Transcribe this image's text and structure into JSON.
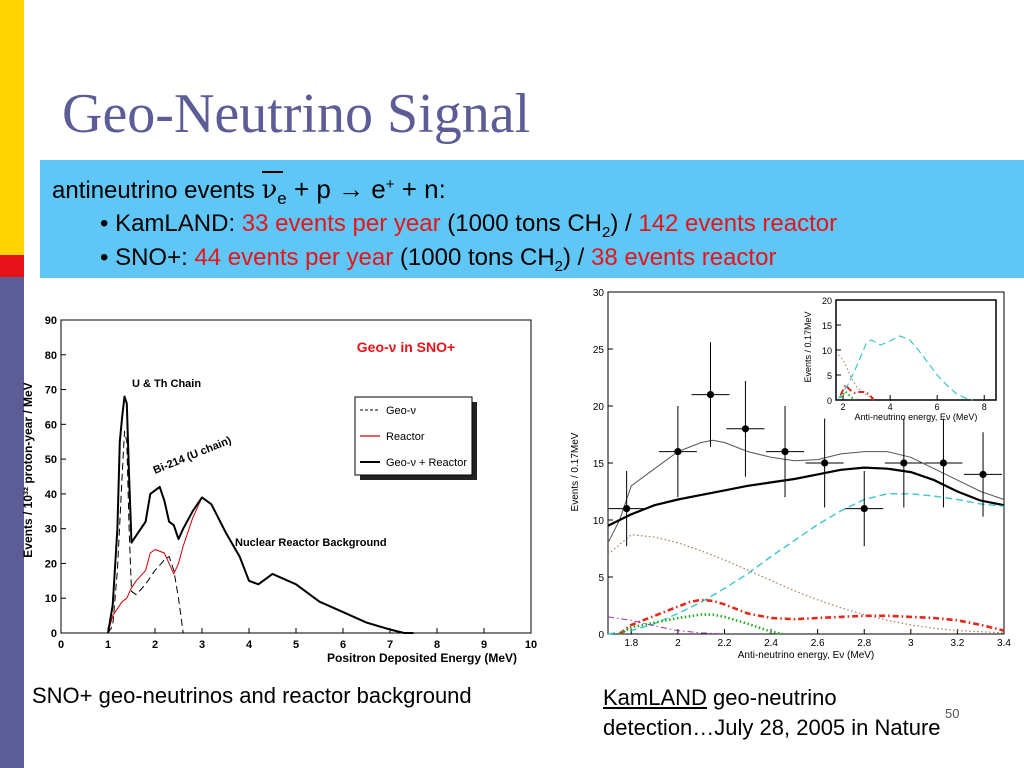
{
  "slide": {
    "title": "Geo-Neutrino Signal",
    "page_number": "50",
    "colors": {
      "title": "#5c5c96",
      "band": "#5fc6f5",
      "highlight": "#e8131a",
      "bar_yellow": "#ffd400",
      "bar_red": "#e8131a",
      "bar_blue": "#5c5c96"
    }
  },
  "band": {
    "line1": {
      "prefix": "antineutrino events ",
      "nu": "ν",
      "nu_sub": "e",
      "reaction": " + p → e",
      "plus_sup": "+",
      "suffix": " + n:"
    },
    "kamland": {
      "label": "• KamLAND: ",
      "rate": "33 events per year",
      "mass_a": " (1000 tons CH",
      "mass_sub": "2",
      "mass_b": ") / ",
      "reactor": "142 events reactor"
    },
    "sno": {
      "label": "• SNO+: ",
      "rate": "44 events per year",
      "mass_a": " (1000 tons CH",
      "mass_sub": "2",
      "mass_b": ") / ",
      "reactor": "38 events reactor"
    }
  },
  "captions": {
    "left": "SNO+ geo-neutrinos and reactor background",
    "right_link": "KamLAND",
    "right_rest": " geo-neutrino",
    "right_line2": "detection…July 28, 2005 in Nature"
  },
  "chart_data": [
    {
      "type": "line",
      "title": "Geo-ν in SNO+",
      "xlabel": "Positron Deposited Energy (MeV)",
      "ylabel": "Events / 10³² proton-year / MeV",
      "xlim": [
        0,
        10
      ],
      "ylim": [
        0,
        90
      ],
      "xticks": [
        0,
        1,
        2,
        3,
        4,
        5,
        6,
        7,
        8,
        9,
        10
      ],
      "yticks": [
        0,
        10,
        20,
        30,
        40,
        50,
        60,
        70,
        80,
        90
      ],
      "legend_position": "top-right",
      "annotations": [
        "U & Th Chain",
        "Bi-214 (U chain)",
        "Nuclear Reactor Background"
      ],
      "series": [
        {
          "name": "Geo-ν",
          "style": "dashed",
          "color": "#000000",
          "x": [
            1.0,
            1.1,
            1.2,
            1.3,
            1.35,
            1.4,
            1.45,
            1.5,
            1.6,
            1.8,
            2.0,
            2.2,
            2.3,
            2.4,
            2.5,
            2.6
          ],
          "y": [
            0,
            2,
            18,
            45,
            58,
            55,
            30,
            12,
            11,
            14,
            18,
            21,
            22,
            18,
            10,
            0
          ]
        },
        {
          "name": "Reactor",
          "style": "solid",
          "color": "#cc0000",
          "x": [
            1.0,
            1.1,
            1.2,
            1.3,
            1.4,
            1.5,
            1.6,
            1.8,
            1.9,
            2.0,
            2.2,
            2.4,
            2.5,
            2.6,
            2.8,
            3.0,
            3.2,
            3.5,
            3.8,
            4.0,
            4.2,
            4.5,
            5.0,
            5.5,
            6.0,
            6.5,
            7.0,
            7.3,
            7.5
          ],
          "y": [
            0,
            5,
            7,
            9,
            10,
            13,
            15,
            18,
            23,
            24,
            23,
            17,
            20,
            25,
            33,
            39,
            37,
            29,
            22,
            15,
            14,
            17,
            14,
            9,
            6,
            3,
            1,
            0,
            0
          ]
        },
        {
          "name": "Geo-ν + Reactor",
          "style": "solid",
          "color": "#000000",
          "x": [
            1.0,
            1.1,
            1.2,
            1.25,
            1.3,
            1.35,
            1.4,
            1.45,
            1.5,
            1.6,
            1.8,
            1.9,
            2.0,
            2.1,
            2.2,
            2.3,
            2.4,
            2.5,
            2.6,
            2.8,
            3.0,
            3.2,
            3.5,
            3.8,
            4.0,
            4.2,
            4.5,
            5.0,
            5.5,
            6.0,
            6.5,
            7.0,
            7.3,
            7.5
          ],
          "y": [
            0,
            8,
            30,
            55,
            62,
            68,
            66,
            45,
            26,
            28,
            32,
            40,
            41,
            42,
            38,
            32,
            31,
            27,
            30,
            35,
            39,
            37,
            29,
            22,
            15,
            14,
            17,
            14,
            9,
            6,
            3,
            1,
            0,
            0
          ]
        }
      ]
    },
    {
      "type": "scatter",
      "title": "",
      "xlabel": "Anti-neutrino energy, Eν (MeV)",
      "ylabel": "Events / 0.17MeV",
      "xlim": [
        1.7,
        3.4
      ],
      "ylim": [
        0,
        30
      ],
      "xticks": [
        1.8,
        2,
        2.2,
        2.4,
        2.6,
        2.8,
        3,
        3.2,
        3.4
      ],
      "yticks": [
        0,
        5,
        10,
        15,
        20,
        25,
        30
      ],
      "points": {
        "x": [
          1.78,
          2.0,
          2.14,
          2.29,
          2.46,
          2.63,
          2.8,
          2.97,
          3.14,
          3.31
        ],
        "y": [
          11,
          16,
          21,
          18,
          16,
          15,
          11,
          15,
          15,
          14
        ],
        "yerr": [
          3.3,
          4.0,
          4.6,
          4.2,
          4.0,
          3.9,
          3.3,
          3.9,
          3.9,
          3.7
        ]
      },
      "series": [
        {
          "name": "total (thin)",
          "style": "solid",
          "color": "#555555",
          "x": [
            1.7,
            1.75,
            1.8,
            1.9,
            2.0,
            2.1,
            2.15,
            2.2,
            2.3,
            2.4,
            2.5,
            2.6,
            2.7,
            2.8,
            2.9,
            3.0,
            3.1,
            3.2,
            3.3,
            3.4
          ],
          "y": [
            8,
            10,
            13,
            14.5,
            16,
            16.8,
            17,
            16.8,
            16,
            15.5,
            15.2,
            15.3,
            15.8,
            16,
            16,
            15.5,
            14.5,
            13.5,
            12.5,
            11.8
          ]
        },
        {
          "name": "total (bold)",
          "style": "solid",
          "color": "#000000",
          "x": [
            1.7,
            1.8,
            1.9,
            2.0,
            2.1,
            2.2,
            2.3,
            2.4,
            2.5,
            2.6,
            2.7,
            2.8,
            2.9,
            3.0,
            3.1,
            3.2,
            3.3,
            3.4
          ],
          "y": [
            9.5,
            10.5,
            11.3,
            11.8,
            12.2,
            12.6,
            13.0,
            13.3,
            13.6,
            14.0,
            14.4,
            14.6,
            14.5,
            14.2,
            13.5,
            12.5,
            11.7,
            11.3
          ]
        },
        {
          "name": "reactor",
          "style": "dashed",
          "color": "#3cc6cc",
          "x": [
            1.7,
            1.8,
            1.9,
            2.0,
            2.1,
            2.2,
            2.3,
            2.4,
            2.5,
            2.6,
            2.7,
            2.8,
            2.9,
            3.0,
            3.1,
            3.2,
            3.3,
            3.4
          ],
          "y": [
            0,
            0.3,
            0.9,
            1.8,
            2.8,
            4.0,
            5.3,
            6.8,
            8.2,
            9.6,
            10.8,
            11.8,
            12.3,
            12.3,
            12.1,
            11.8,
            11.4,
            11.2
          ]
        },
        {
          "name": "accidental",
          "style": "dotted",
          "color": "#a87a55",
          "x": [
            1.7,
            1.8,
            1.9,
            2.0,
            2.1,
            2.2,
            2.3,
            2.4,
            2.5,
            2.6,
            2.7,
            2.8,
            2.9,
            3.0,
            3.1,
            3.2,
            3.3,
            3.4
          ],
          "y": [
            7,
            8.7,
            8.5,
            8.0,
            7.3,
            6.5,
            5.6,
            4.7,
            3.8,
            3.0,
            2.3,
            1.7,
            1.2,
            0.8,
            0.5,
            0.3,
            0.2,
            0.1
          ]
        },
        {
          "name": "geo-ν U",
          "style": "dashdot",
          "color": "#e02a1a",
          "x": [
            1.75,
            1.8,
            1.9,
            2.0,
            2.05,
            2.1,
            2.15,
            2.2,
            2.3,
            2.4,
            2.5,
            2.6,
            2.7,
            2.8,
            2.9,
            3.0,
            3.1,
            3.2,
            3.3,
            3.4
          ],
          "y": [
            0,
            0.8,
            1.6,
            2.4,
            2.8,
            3.0,
            2.9,
            2.6,
            1.8,
            1.4,
            1.3,
            1.4,
            1.5,
            1.6,
            1.6,
            1.5,
            1.4,
            1.2,
            0.8,
            0.3
          ]
        },
        {
          "name": "geo-ν Th",
          "style": "dotted",
          "color": "#22aa22",
          "x": [
            1.75,
            1.8,
            1.9,
            2.0,
            2.1,
            2.15,
            2.2,
            2.3,
            2.4,
            2.45
          ],
          "y": [
            0,
            0.6,
            1.0,
            1.4,
            1.7,
            1.7,
            1.5,
            0.9,
            0.2,
            0
          ]
        },
        {
          "name": "other",
          "style": "dashdot",
          "color": "#9933aa",
          "x": [
            1.7,
            1.8,
            1.9,
            2.0,
            2.1,
            2.2
          ],
          "y": [
            1.5,
            1.2,
            0.7,
            0.3,
            0.1,
            0
          ]
        }
      ],
      "inset": {
        "xlabel": "Anti-neutrino energy, Eν (MeV)",
        "ylabel": "Events / 0.17MeV",
        "xlim": [
          1.7,
          8.5
        ],
        "ylim": [
          0,
          20
        ],
        "xticks": [
          2,
          4,
          6,
          8
        ],
        "yticks": [
          0,
          5,
          10,
          15,
          20
        ],
        "series": [
          {
            "name": "reactor",
            "style": "dashed",
            "color": "#3cc6cc",
            "x": [
              1.8,
              2.2,
              2.6,
              3.0,
              3.2,
              3.6,
              4.0,
              4.4,
              4.8,
              5.2,
              5.6,
              6.0,
              6.4,
              6.8,
              7.2,
              7.5
            ],
            "y": [
              0.3,
              3,
              7,
              11.5,
              12,
              11,
              11.8,
              12.8,
              12.2,
              10,
              7.5,
              5,
              3,
              1.3,
              0.4,
              0
            ]
          },
          {
            "name": "accidental",
            "style": "dotted",
            "color": "#a87a55",
            "x": [
              1.8,
              2.0,
              2.2,
              2.4,
              2.6,
              3.0,
              3.4
            ],
            "y": [
              9,
              8,
              6,
              4,
              2.5,
              1,
              0.2
            ]
          },
          {
            "name": "geo-ν U",
            "style": "dashdot",
            "color": "#e02a1a",
            "x": [
              1.9,
              2.1,
              2.3,
              2.5,
              2.7,
              2.9,
              3.1,
              3.3
            ],
            "y": [
              1,
              3,
              2,
              1.4,
              1.6,
              1.6,
              1.2,
              0
            ]
          },
          {
            "name": "geo-ν Th",
            "style": "dotted",
            "color": "#22aa22",
            "x": [
              1.9,
              2.1,
              2.3,
              2.5
            ],
            "y": [
              0.5,
              1.7,
              0.8,
              0
            ]
          }
        ]
      }
    }
  ]
}
